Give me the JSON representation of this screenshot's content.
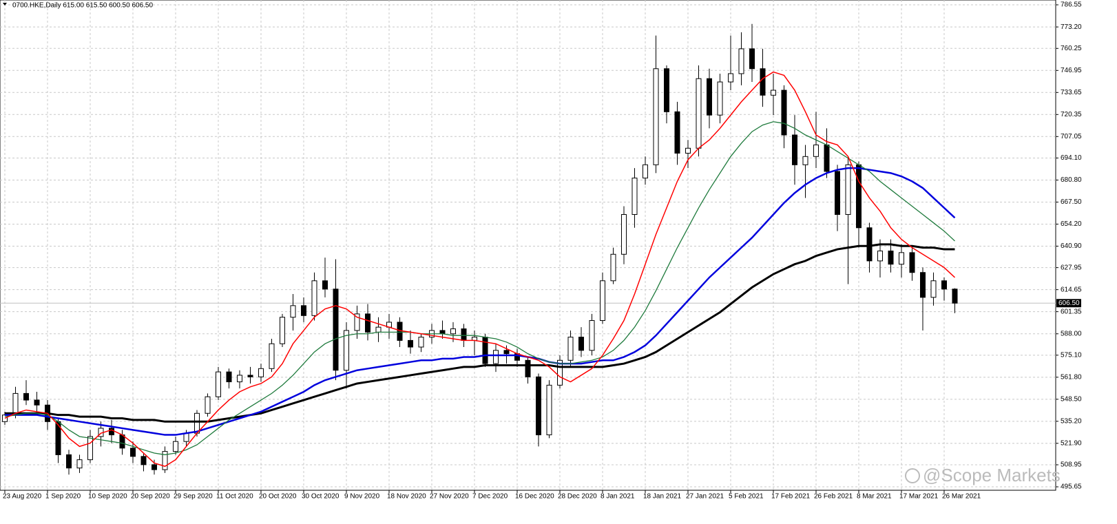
{
  "chart_data": {
    "type": "candlestick",
    "title": "0700.HKE,Daily  615.00 615.50 600.50 606.50",
    "annotation": "@Scope Markets",
    "last_price": {
      "value": 606.5,
      "label": "606.50"
    },
    "ylim": [
      493.57,
      789.46
    ],
    "yticks": [
      495.65,
      508.95,
      {
        "value": 521.9,
        "label": "521.90"
      },
      {
        "value": 535.2,
        "label": "535.20"
      },
      {
        "value": 548.5,
        "label": "548.50"
      },
      {
        "value": 561.8,
        "label": "561.80"
      },
      {
        "value": 575.1,
        "label": "575.10"
      },
      {
        "value": 588,
        "label": "588.00"
      },
      601.35,
      614.65,
      627.95,
      {
        "value": 640.9,
        "label": "640.90"
      },
      {
        "value": 654.2,
        "label": "654.20"
      },
      {
        "value": 667.5,
        "label": "667.50"
      },
      {
        "value": 680.8,
        "label": "680.80"
      },
      {
        "value": 694.1,
        "label": "694.10"
      },
      707.05,
      720.35,
      733.65,
      746.95,
      760.25,
      {
        "value": 773.2,
        "label": "773.20"
      },
      786.55
    ],
    "grid": true,
    "categories": [
      "23 Aug 2020",
      null,
      null,
      null,
      "1 Sep 2020",
      null,
      null,
      null,
      "10 Sep 2020",
      null,
      null,
      null,
      "20 Sep 2020",
      null,
      null,
      null,
      "29 Sep 2020",
      null,
      null,
      null,
      "11 Oct 2020",
      null,
      null,
      null,
      "20 Oct 2020",
      null,
      null,
      null,
      "30 Oct 2020",
      null,
      null,
      null,
      "9 Nov 2020",
      null,
      null,
      null,
      "18 Nov 2020",
      null,
      null,
      null,
      "27 Nov 2020",
      null,
      null,
      null,
      "7 Dec 2020",
      null,
      null,
      null,
      "16 Dec 2020",
      null,
      null,
      null,
      "28 Dec 2020",
      null,
      null,
      null,
      "8 Jan 2021",
      null,
      null,
      null,
      "18 Jan 2021",
      null,
      null,
      null,
      "27 Jan 2021",
      null,
      null,
      null,
      "5 Feb 2021",
      null,
      null,
      null,
      "17 Feb 2021",
      null,
      null,
      null,
      "26 Feb 2021",
      null,
      null,
      null,
      "8 Mar 2021",
      null,
      null,
      null,
      "17 Mar 2021",
      null,
      null,
      null,
      "26 Mar 2021",
      null
    ],
    "open": [
      535,
      539,
      552,
      548,
      545,
      535,
      515,
      507,
      512,
      526,
      531,
      527,
      519,
      514,
      509,
      506,
      517,
      523,
      528,
      540,
      550,
      565,
      559,
      563,
      562,
      567,
      582,
      598,
      605,
      599,
      620,
      615,
      566,
      590,
      600,
      589,
      592,
      595,
      584,
      580,
      586,
      590,
      588,
      591,
      584,
      586,
      570,
      578,
      576,
      572,
      562,
      527,
      557,
      572,
      586,
      578,
      596,
      620,
      636,
      660,
      682,
      690,
      748,
      722,
      697,
      700,
      742,
      720,
      740,
      745,
      760,
      748,
      732,
      735,
      708,
      690,
      695,
      702,
      686,
      660,
      690,
      652,
      632,
      638,
      630,
      637,
      625,
      610,
      620,
      615
    ],
    "high": [
      541,
      556,
      560,
      553,
      548,
      537,
      518,
      515,
      530,
      535,
      536,
      530,
      523,
      516,
      512,
      520,
      526,
      530,
      542,
      552,
      568,
      567,
      566,
      568,
      570,
      585,
      600,
      612,
      610,
      625,
      634,
      633,
      595,
      605,
      606,
      598,
      600,
      598,
      590,
      588,
      594,
      596,
      595,
      594,
      590,
      588,
      582,
      581,
      579,
      574,
      564,
      560,
      575,
      590,
      592,
      600,
      625,
      640,
      665,
      688,
      695,
      768,
      750,
      728,
      705,
      750,
      748,
      745,
      768,
      770,
      775,
      760,
      745,
      738,
      720,
      702,
      722,
      712,
      690,
      695,
      692,
      655,
      645,
      645,
      642,
      640,
      628,
      625,
      622,
      615.5
    ],
    "low": [
      533,
      537,
      545,
      540,
      530,
      510,
      503,
      504,
      510,
      520,
      522,
      515,
      510,
      505,
      503,
      504,
      515,
      520,
      526,
      538,
      548,
      555,
      555,
      558,
      559,
      565,
      580,
      590,
      595,
      596,
      610,
      560,
      555,
      585,
      584,
      583,
      585,
      580,
      576,
      577,
      582,
      585,
      583,
      580,
      575,
      568,
      565,
      570,
      568,
      558,
      520,
      525,
      555,
      568,
      574,
      575,
      594,
      618,
      630,
      652,
      678,
      685,
      715,
      690,
      688,
      695,
      712,
      715,
      735,
      738,
      740,
      725,
      720,
      700,
      678,
      670,
      688,
      682,
      650,
      618,
      640,
      625,
      622,
      625,
      622,
      620,
      590,
      605,
      608,
      600.5
    ],
    "close": [
      539,
      552,
      548,
      545,
      535,
      515,
      507,
      512,
      526,
      531,
      527,
      519,
      514,
      509,
      506,
      517,
      523,
      528,
      540,
      550,
      565,
      559,
      563,
      562,
      567,
      582,
      598,
      605,
      599,
      620,
      615,
      566,
      590,
      600,
      589,
      592,
      595,
      584,
      580,
      586,
      590,
      588,
      591,
      584,
      586,
      570,
      578,
      576,
      572,
      562,
      527,
      557,
      572,
      586,
      578,
      596,
      620,
      636,
      660,
      682,
      690,
      748,
      722,
      697,
      700,
      742,
      720,
      740,
      745,
      760,
      748,
      732,
      735,
      708,
      690,
      695,
      702,
      686,
      660,
      690,
      652,
      632,
      638,
      630,
      637,
      625,
      610,
      620,
      615,
      606.5
    ],
    "lines": [
      {
        "color": "#000000",
        "values": [
          540,
          540,
          540,
          540,
          540,
          539,
          539,
          538,
          538,
          538,
          537,
          537,
          536,
          536,
          536,
          535,
          535,
          535,
          535,
          535,
          536,
          537,
          538,
          539,
          540,
          542,
          544,
          546,
          548,
          550,
          552,
          554,
          556,
          558,
          559,
          560,
          561,
          562,
          563,
          564,
          565,
          566,
          567,
          568,
          568,
          569,
          569,
          569,
          569,
          569,
          569,
          569,
          568,
          568,
          568,
          568,
          568,
          569,
          570,
          572,
          574,
          577,
          581,
          585,
          589,
          593,
          597,
          601,
          606,
          611,
          616,
          620,
          624,
          627,
          630,
          632,
          635,
          637,
          639,
          640,
          641,
          641,
          642,
          642,
          641,
          641,
          640,
          640,
          639,
          639
        ]
      },
      {
        "color": "#0000dd",
        "values": [
          539,
          539,
          539,
          539,
          538,
          537,
          536,
          535,
          534,
          533,
          532,
          531,
          530,
          529,
          528,
          527,
          527,
          528,
          529,
          531,
          533,
          535,
          537,
          539,
          541,
          544,
          547,
          550,
          553,
          557,
          560,
          562,
          564,
          566,
          567,
          568,
          569,
          570,
          571,
          572,
          572,
          573,
          573,
          574,
          574,
          575,
          575,
          575,
          575,
          574,
          573,
          571,
          570,
          570,
          570,
          571,
          572,
          572,
          574,
          577,
          581,
          587,
          594,
          601,
          608,
          615,
          622,
          628,
          634,
          640,
          646,
          653,
          660,
          667,
          673,
          678,
          682,
          685,
          687,
          688,
          688,
          687,
          686,
          685,
          683,
          680,
          676,
          670,
          664,
          658
        ]
      },
      {
        "color": "#1e7a3c",
        "values": [
          538,
          539,
          540,
          540,
          539,
          535,
          530,
          526,
          525,
          524,
          523,
          522,
          520,
          518,
          516,
          515,
          516,
          518,
          521,
          526,
          531,
          536,
          540,
          544,
          548,
          552,
          557,
          563,
          570,
          577,
          582,
          585,
          587,
          588,
          588,
          589,
          589,
          589,
          589,
          588,
          588,
          588,
          587,
          587,
          587,
          586,
          585,
          583,
          580,
          576,
          573,
          571,
          570,
          570,
          571,
          572,
          574,
          578,
          584,
          592,
          602,
          614,
          627,
          640,
          652,
          664,
          675,
          685,
          695,
          703,
          710,
          714,
          716,
          715,
          712,
          708,
          705,
          702,
          698,
          694,
          690,
          686,
          680,
          675,
          670,
          665,
          660,
          655,
          650,
          644
        ]
      },
      {
        "color": "#ff0000",
        "values": [
          537,
          540,
          542,
          541,
          540,
          533,
          525,
          520,
          522,
          528,
          530,
          527,
          522,
          516,
          510,
          508,
          512,
          520,
          528,
          535,
          542,
          548,
          553,
          556,
          558,
          562,
          570,
          582,
          590,
          598,
          603,
          605,
          603,
          598,
          596,
          594,
          592,
          590,
          589,
          588,
          587,
          586,
          585,
          584,
          584,
          583,
          582,
          579,
          576,
          574,
          572,
          568,
          562,
          559,
          563,
          567,
          575,
          585,
          596,
          612,
          630,
          648,
          664,
          680,
          693,
          700,
          705,
          712,
          720,
          728,
          735,
          742,
          746,
          744,
          735,
          722,
          708,
          704,
          702,
          695,
          680,
          670,
          662,
          652,
          645,
          640,
          636,
          632,
          628,
          622
        ]
      }
    ]
  }
}
